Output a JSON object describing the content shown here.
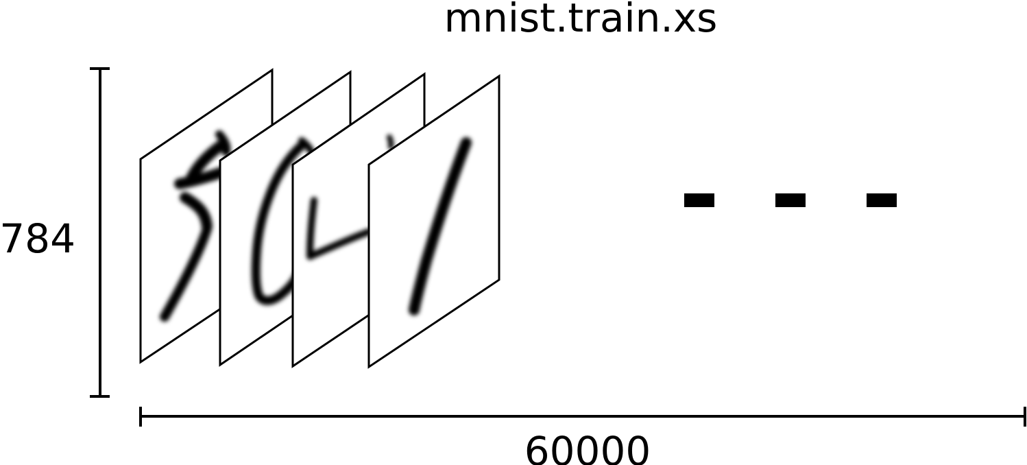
{
  "title": "mnist.train.xs",
  "vertical_dimension_label": "784",
  "horizontal_dimension_label": "60000",
  "sample_images": [
    {
      "digit": "5"
    },
    {
      "digit": "0"
    },
    {
      "digit": "4"
    },
    {
      "digit": "1"
    }
  ],
  "ellipsis": "- - -",
  "colors": {
    "ink": "#000000",
    "background": "#ffffff"
  }
}
